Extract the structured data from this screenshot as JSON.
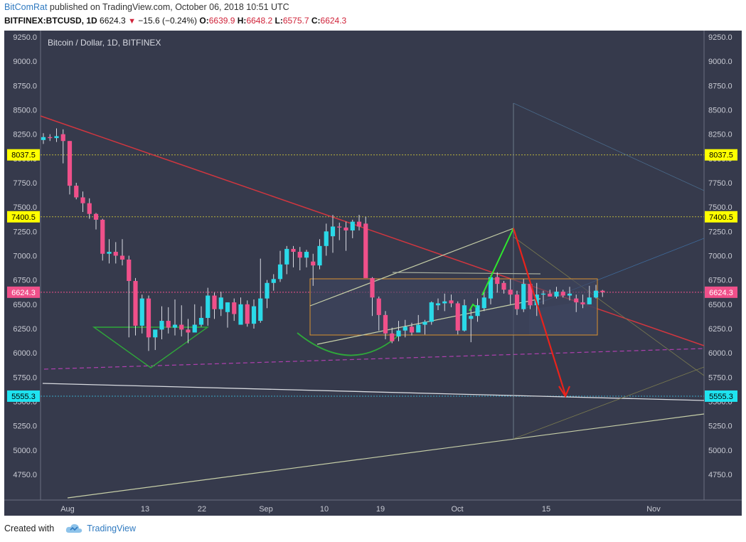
{
  "header": {
    "author": "BitComRat",
    "published": "published on TradingView.com, October 06, 2018 10:51 UTC",
    "symbol": "BITFINEX:BTCUSD, 1D",
    "last": "6624.3",
    "arrow": "▼",
    "change": "−15.6 (−0.24%)",
    "o_label": "O:",
    "o_value": "6639.9",
    "h_label": "H:",
    "h_value": "6648.2",
    "l_label": "L:",
    "l_value": "6575.7",
    "c_label": "C:",
    "c_value": "6624.3"
  },
  "footer": {
    "created_with": "Created with",
    "brand": "TradingView"
  },
  "colors": {
    "background": "#363a4c",
    "up": "#2ad9e8",
    "down": "#f0508a",
    "grid": "#4a4e60",
    "axis_text": "#c9cbd4",
    "yellow_tag": "#ffff00",
    "cyan_tag": "#1fe3f0",
    "pink_tag": "#f0508a"
  },
  "chart_data": {
    "type": "candlestick",
    "title": "Bitcoin / Dollar, 1D, BITFINEX",
    "ylim": [
      4500,
      9250
    ],
    "y_ticks": [
      "9250.0",
      "9000.0",
      "8750.0",
      "8500.0",
      "8250.0",
      "8000.0",
      "7750.0",
      "7500.0",
      "7250.0",
      "7000.0",
      "6750.0",
      "6500.0",
      "6250.0",
      "6000.0",
      "5750.0",
      "5500.0",
      "5250.0",
      "5000.0",
      "4750.0"
    ],
    "x_ticks": [
      "Aug",
      "13",
      "22",
      "Sep",
      "10",
      "19",
      "Oct",
      "15",
      "Nov"
    ],
    "price_tags": [
      {
        "label": "8037.5",
        "value": 8037.5,
        "kind": "yellow"
      },
      {
        "label": "7400.5",
        "value": 7400.5,
        "kind": "yellow"
      },
      {
        "label": "6624.3",
        "value": 6624.3,
        "kind": "pink"
      },
      {
        "label": "5555.3",
        "value": 5555.3,
        "kind": "cyan"
      }
    ],
    "candles": [
      {
        "d": "Jul 28",
        "o": 8190,
        "h": 8260,
        "l": 8150,
        "c": 8220
      },
      {
        "d": "Jul 29",
        "o": 8220,
        "h": 8250,
        "l": 8180,
        "c": 8210
      },
      {
        "d": "Jul 30",
        "o": 8210,
        "h": 8310,
        "l": 8170,
        "c": 8230
      },
      {
        "d": "Jul 31",
        "o": 8250,
        "h": 8300,
        "l": 7950,
        "c": 8180
      },
      {
        "d": "Aug 1",
        "o": 8180,
        "h": 8180,
        "l": 7630,
        "c": 7720
      },
      {
        "d": "Aug 2",
        "o": 7720,
        "h": 7750,
        "l": 7580,
        "c": 7600
      },
      {
        "d": "Aug 3",
        "o": 7600,
        "h": 7660,
        "l": 7450,
        "c": 7540
      },
      {
        "d": "Aug 4",
        "o": 7540,
        "h": 7590,
        "l": 7380,
        "c": 7430
      },
      {
        "d": "Aug 5",
        "o": 7430,
        "h": 7440,
        "l": 7270,
        "c": 7370
      },
      {
        "d": "Aug 6",
        "o": 7370,
        "h": 7380,
        "l": 6950,
        "c": 7020
      },
      {
        "d": "Aug 7",
        "o": 7020,
        "h": 7170,
        "l": 6920,
        "c": 7040
      },
      {
        "d": "Aug 8",
        "o": 7040,
        "h": 7140,
        "l": 6920,
        "c": 7000
      },
      {
        "d": "Aug 9",
        "o": 7000,
        "h": 7170,
        "l": 6900,
        "c": 6960
      },
      {
        "d": "Aug 10",
        "o": 6960,
        "h": 7000,
        "l": 6160,
        "c": 6740
      },
      {
        "d": "Aug 11",
        "o": 6740,
        "h": 6770,
        "l": 6180,
        "c": 6280
      },
      {
        "d": "Aug 12",
        "o": 6280,
        "h": 6600,
        "l": 6200,
        "c": 6560
      },
      {
        "d": "Aug 13",
        "o": 6560,
        "h": 6590,
        "l": 6020,
        "c": 6160
      },
      {
        "d": "Aug 14",
        "o": 6160,
        "h": 6210,
        "l": 6030,
        "c": 6240
      },
      {
        "d": "Aug 15",
        "o": 6240,
        "h": 6480,
        "l": 6140,
        "c": 6330
      },
      {
        "d": "Aug 16",
        "o": 6330,
        "h": 6470,
        "l": 6200,
        "c": 6260
      },
      {
        "d": "Aug 17",
        "o": 6260,
        "h": 6550,
        "l": 6180,
        "c": 6290
      },
      {
        "d": "Aug 18",
        "o": 6290,
        "h": 6490,
        "l": 6170,
        "c": 6240
      },
      {
        "d": "Aug 19",
        "o": 6240,
        "h": 6350,
        "l": 6100,
        "c": 6210
      },
      {
        "d": "Aug 20",
        "o": 6210,
        "h": 6500,
        "l": 6240,
        "c": 6290
      },
      {
        "d": "Aug 21",
        "o": 6290,
        "h": 6480,
        "l": 6270,
        "c": 6360
      },
      {
        "d": "Aug 22",
        "o": 6360,
        "h": 6670,
        "l": 6280,
        "c": 6590
      },
      {
        "d": "Aug 23",
        "o": 6590,
        "h": 6620,
        "l": 6350,
        "c": 6450
      },
      {
        "d": "Aug 24",
        "o": 6450,
        "h": 6630,
        "l": 6380,
        "c": 6570
      },
      {
        "d": "Aug 25",
        "o": 6420,
        "h": 6520,
        "l": 6260,
        "c": 6520
      },
      {
        "d": "Aug 26",
        "o": 6520,
        "h": 6560,
        "l": 6330,
        "c": 6400
      },
      {
        "d": "Aug 27",
        "o": 6290,
        "h": 6570,
        "l": 6300,
        "c": 6500
      },
      {
        "d": "Aug 28",
        "o": 6500,
        "h": 6540,
        "l": 6270,
        "c": 6300
      },
      {
        "d": "Aug 29",
        "o": 6300,
        "h": 6550,
        "l": 6250,
        "c": 6480
      },
      {
        "d": "Aug 30",
        "o": 6330,
        "h": 6970,
        "l": 6310,
        "c": 6560
      },
      {
        "d": "Aug 31",
        "o": 6560,
        "h": 6750,
        "l": 6460,
        "c": 6720
      },
      {
        "d": "Sep 1",
        "o": 6720,
        "h": 6810,
        "l": 6640,
        "c": 6760
      },
      {
        "d": "Sep 2",
        "o": 6760,
        "h": 7050,
        "l": 6730,
        "c": 6910
      },
      {
        "d": "Sep 3",
        "o": 6910,
        "h": 7100,
        "l": 6810,
        "c": 7070
      },
      {
        "d": "Sep 4",
        "o": 7070,
        "h": 7100,
        "l": 6880,
        "c": 7040
      },
      {
        "d": "Sep 5",
        "o": 7040,
        "h": 7090,
        "l": 6850,
        "c": 6980
      },
      {
        "d": "Sep 6",
        "o": 6980,
        "h": 7060,
        "l": 6880,
        "c": 7040
      },
      {
        "d": "Sep 7",
        "o": 6940,
        "h": 7020,
        "l": 6690,
        "c": 6900
      },
      {
        "d": "Sep 8",
        "o": 6900,
        "h": 7170,
        "l": 6860,
        "c": 7100
      },
      {
        "d": "Sep 9",
        "o": 7100,
        "h": 7330,
        "l": 7000,
        "c": 7250
      },
      {
        "d": "Sep 10",
        "o": 7200,
        "h": 7420,
        "l": 7030,
        "c": 7300
      },
      {
        "d": "Sep 11",
        "o": 7300,
        "h": 7340,
        "l": 7160,
        "c": 7290
      },
      {
        "d": "Sep 12",
        "o": 7290,
        "h": 7350,
        "l": 7050,
        "c": 7260
      },
      {
        "d": "Sep 13",
        "o": 7260,
        "h": 7370,
        "l": 7180,
        "c": 7350
      },
      {
        "d": "Sep 14",
        "o": 7350,
        "h": 7420,
        "l": 7260,
        "c": 7300
      },
      {
        "d": "Sep 15",
        "o": 7330,
        "h": 7400,
        "l": 6800,
        "c": 6770
      },
      {
        "d": "Sep 16",
        "o": 6770,
        "h": 6780,
        "l": 6380,
        "c": 6570
      },
      {
        "d": "Sep 17",
        "o": 6560,
        "h": 6580,
        "l": 6230,
        "c": 6390
      },
      {
        "d": "Sep 18",
        "o": 6390,
        "h": 6430,
        "l": 6140,
        "c": 6200
      },
      {
        "d": "Sep 19",
        "o": 6200,
        "h": 6260,
        "l": 6100,
        "c": 6120
      },
      {
        "d": "Sep 20",
        "o": 6170,
        "h": 6330,
        "l": 6120,
        "c": 6230
      },
      {
        "d": "Sep 21",
        "o": 6230,
        "h": 6340,
        "l": 6160,
        "c": 6270
      },
      {
        "d": "Sep 22",
        "o": 6270,
        "h": 6310,
        "l": 6180,
        "c": 6210
      },
      {
        "d": "Sep 23",
        "o": 6210,
        "h": 6390,
        "l": 6210,
        "c": 6290
      },
      {
        "d": "Sep 24",
        "o": 6290,
        "h": 6340,
        "l": 6190,
        "c": 6320
      },
      {
        "d": "Sep 25",
        "o": 6320,
        "h": 6530,
        "l": 6290,
        "c": 6520
      },
      {
        "d": "Sep 26",
        "o": 6490,
        "h": 6560,
        "l": 6440,
        "c": 6510
      },
      {
        "d": "Sep 27",
        "o": 6510,
        "h": 6610,
        "l": 6430,
        "c": 6530
      },
      {
        "d": "Sep 28",
        "o": 6540,
        "h": 6600,
        "l": 6470,
        "c": 6510
      },
      {
        "d": "Sep 29",
        "o": 6510,
        "h": 6530,
        "l": 6190,
        "c": 6230
      },
      {
        "d": "Sep 30",
        "o": 6230,
        "h": 6550,
        "l": 6220,
        "c": 6490
      },
      {
        "d": "Oct 1",
        "o": 6350,
        "h": 6470,
        "l": 6110,
        "c": 6380
      },
      {
        "d": "Oct 2",
        "o": 6380,
        "h": 6560,
        "l": 6320,
        "c": 6490
      },
      {
        "d": "Oct 3",
        "o": 6460,
        "h": 6640,
        "l": 6430,
        "c": 6570
      },
      {
        "d": "Oct 4",
        "o": 6560,
        "h": 6800,
        "l": 6500,
        "c": 6780
      },
      {
        "d": "Oct 5",
        "o": 6780,
        "h": 6830,
        "l": 6620,
        "c": 6710
      },
      {
        "d": "Oct 6",
        "o": 6720,
        "h": 6740,
        "l": 6610,
        "c": 6650
      },
      {
        "d": "Oct 7",
        "o": 6650,
        "h": 6760,
        "l": 6500,
        "c": 6600
      },
      {
        "d": "Oct 8",
        "o": 6600,
        "h": 6640,
        "l": 6390,
        "c": 6450
      },
      {
        "d": "Oct 9",
        "o": 6450,
        "h": 6760,
        "l": 6420,
        "c": 6710
      },
      {
        "d": "Oct 10",
        "o": 6710,
        "h": 6720,
        "l": 6450,
        "c": 6490
      },
      {
        "d": "Oct 11",
        "o": 6490,
        "h": 6720,
        "l": 6380,
        "c": 6600
      },
      {
        "d": "Oct 12",
        "o": 6600,
        "h": 6640,
        "l": 6500,
        "c": 6610
      },
      {
        "d": "Oct 13",
        "o": 6610,
        "h": 6650,
        "l": 6590,
        "c": 6580
      },
      {
        "d": "Oct 14",
        "o": 6580,
        "h": 6680,
        "l": 6560,
        "c": 6630
      },
      {
        "d": "Oct 15",
        "o": 6630,
        "h": 6650,
        "l": 6570,
        "c": 6590
      },
      {
        "d": "Oct 16",
        "o": 6590,
        "h": 6680,
        "l": 6540,
        "c": 6610
      },
      {
        "d": "Oct 17",
        "o": 6560,
        "h": 6600,
        "l": 6420,
        "c": 6520
      },
      {
        "d": "Oct 18",
        "o": 6520,
        "h": 6600,
        "l": 6460,
        "c": 6500
      },
      {
        "d": "Oct 19",
        "o": 6500,
        "h": 6690,
        "l": 6500,
        "c": 6570
      },
      {
        "d": "Oct 20",
        "o": 6570,
        "h": 6700,
        "l": 6560,
        "c": 6640
      },
      {
        "d": "Oct 21",
        "o": 6639.9,
        "h": 6648.2,
        "l": 6575.7,
        "c": 6624.3
      }
    ]
  }
}
